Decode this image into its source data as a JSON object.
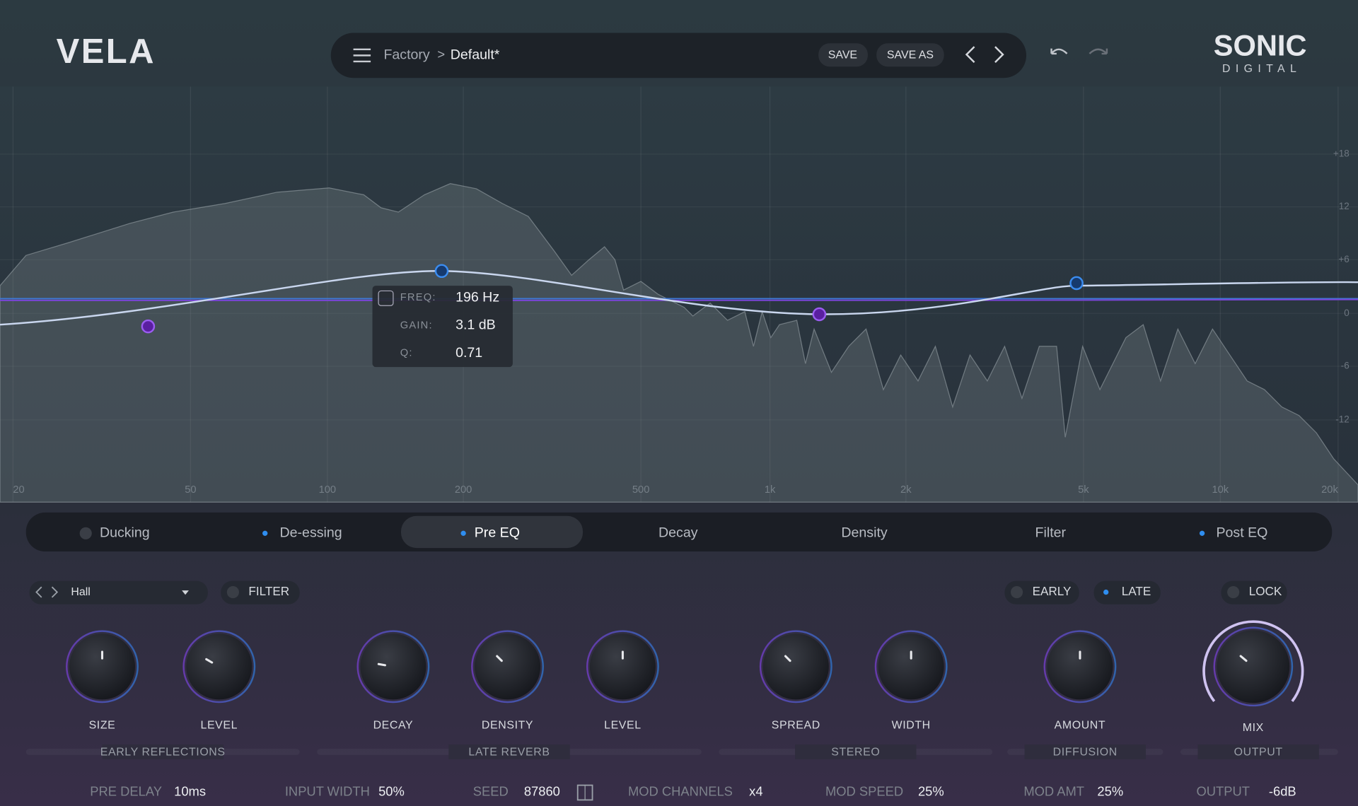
{
  "header": {
    "logo": "VELA",
    "bank": "Factory",
    "separator": ">",
    "preset": "Default*",
    "save": "SAVE",
    "save_as": "SAVE AS",
    "brand": "SONIC",
    "brand_sub": "DIGITAL"
  },
  "eq": {
    "freq_labels": [
      "20",
      "50",
      "100",
      "200",
      "500",
      "1k",
      "2k",
      "5k",
      "10k",
      "20k"
    ],
    "gain_labels": [
      "+18",
      "12",
      "+6",
      "0",
      "-6",
      "-12"
    ],
    "tooltip": {
      "rows": [
        [
          "FREQ:",
          "196 Hz"
        ],
        [
          "GAIN:",
          "3.1 dB"
        ],
        [
          "Q:",
          "0.71"
        ]
      ]
    }
  },
  "tabs": [
    "Ducking",
    "De-essing",
    "Pre EQ",
    "Decay",
    "Density",
    "Filter",
    "Post EQ"
  ],
  "controls": {
    "preset": "Hall",
    "filter": "FILTER",
    "early": "EARLY",
    "late": "LATE",
    "lock": "LOCK"
  },
  "knobs": [
    "SIZE",
    "LEVEL",
    "DECAY",
    "DENSITY",
    "LEVEL",
    "SPREAD",
    "WIDTH",
    "AMOUNT",
    "MIX"
  ],
  "sections": [
    "EARLY REFLECTIONS",
    "LATE REVERB",
    "STEREO",
    "DIFFUSION",
    "OUTPUT"
  ],
  "footer": [
    [
      "PRE DELAY",
      "10ms"
    ],
    [
      "INPUT WIDTH",
      "50%"
    ],
    [
      "SEED",
      "87860"
    ],
    [
      "MOD CHANNELS",
      "x4"
    ],
    [
      "MOD SPEED",
      "25%"
    ],
    [
      "MOD AMT",
      "25%"
    ],
    [
      "OUTPUT",
      "-6dB"
    ]
  ]
}
